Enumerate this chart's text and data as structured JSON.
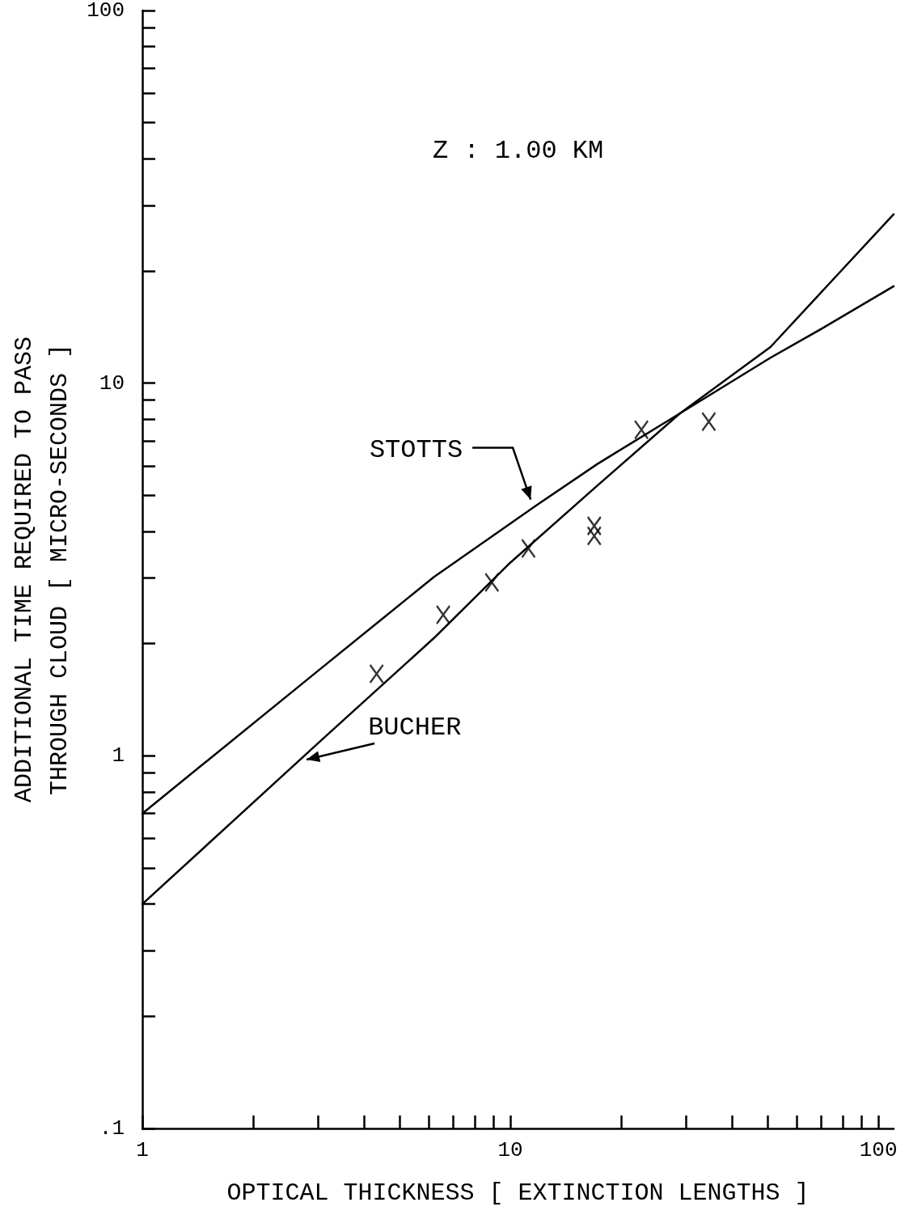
{
  "chart_data": {
    "type": "line",
    "annotations": [
      "Z : 1.00 KM"
    ],
    "xlabel": "OPTICAL THICKNESS [ EXTINCTION LENGTHS ]",
    "ylabel": "ADDITIONAL TIME REQUIRED TO PASS\nTHROUGH CLOUD [ MICRO-SECONDS ]",
    "log": "xy",
    "grid": false,
    "legend": false,
    "marker": "none",
    "xlim": [
      1,
      110
    ],
    "xticks": [
      1,
      {
        "value": 2,
        "label": null
      },
      {
        "value": 3,
        "label": null
      },
      {
        "value": 4,
        "label": null
      },
      {
        "value": 5,
        "label": null
      },
      {
        "value": 6,
        "label": null
      },
      {
        "value": 7,
        "label": null
      },
      {
        "value": 8,
        "label": null
      },
      {
        "value": 9,
        "label": null
      },
      10,
      {
        "value": 20,
        "label": null
      },
      {
        "value": 30,
        "label": null
      },
      {
        "value": 40,
        "label": null
      },
      {
        "value": 50,
        "label": null
      },
      {
        "value": 60,
        "label": null
      },
      {
        "value": 70,
        "label": null
      },
      {
        "value": 80,
        "label": null
      },
      {
        "value": 90,
        "label": null
      },
      100
    ],
    "ylim": [
      0.1,
      100
    ],
    "yticks": [
      {
        "value": 0.1,
        "label": ".1"
      },
      {
        "value": 0.2,
        "label": null
      },
      {
        "value": 0.3,
        "label": null
      },
      {
        "value": 0.4,
        "label": null
      },
      {
        "value": 0.5,
        "label": null
      },
      {
        "value": 0.6,
        "label": null
      },
      {
        "value": 0.7,
        "label": null
      },
      {
        "value": 0.8,
        "label": null
      },
      {
        "value": 0.9,
        "label": null
      },
      1,
      {
        "value": 2,
        "label": null
      },
      {
        "value": 3,
        "label": null
      },
      {
        "value": 4,
        "label": null
      },
      {
        "value": 5,
        "label": null
      },
      {
        "value": 6,
        "label": null
      },
      {
        "value": 7,
        "label": null
      },
      {
        "value": 8,
        "label": null
      },
      {
        "value": 9,
        "label": null
      },
      10,
      {
        "value": 20,
        "label": null
      },
      {
        "value": 30,
        "label": null
      },
      {
        "value": 40,
        "label": null
      },
      {
        "value": 50,
        "label": null
      },
      {
        "value": 60,
        "label": null
      },
      {
        "value": 70,
        "label": null
      },
      {
        "value": 80,
        "label": null
      },
      {
        "value": 90,
        "label": null
      },
      100
    ],
    "series": [
      {
        "name": "STOTTS",
        "color": "#000000",
        "x": [
          1,
          3,
          6.2,
          11.7,
          17.2,
          28.9,
          50.9,
          71,
          110
        ],
        "values": [
          0.7,
          1.69,
          3.02,
          4.68,
          6.06,
          8.3,
          11.7,
          14.1,
          18.2
        ]
      },
      {
        "name": "BUCHER",
        "color": "#000000",
        "x": [
          1,
          3,
          6.2,
          10,
          17.2,
          28.9,
          50.9,
          110
        ],
        "values": [
          0.4,
          1.08,
          2.07,
          3.3,
          5.3,
          8.3,
          12.5,
          28.4
        ]
      },
      {
        "type": "scatter",
        "marker": "cross",
        "color": "#000000",
        "x": [
          4.33,
          6.57,
          8.91,
          11.2,
          16.9,
          16.9,
          22.7,
          34.6
        ],
        "values": [
          1.66,
          2.39,
          2.92,
          3.6,
          4.14,
          3.89,
          7.5,
          7.88
        ]
      }
    ]
  }
}
